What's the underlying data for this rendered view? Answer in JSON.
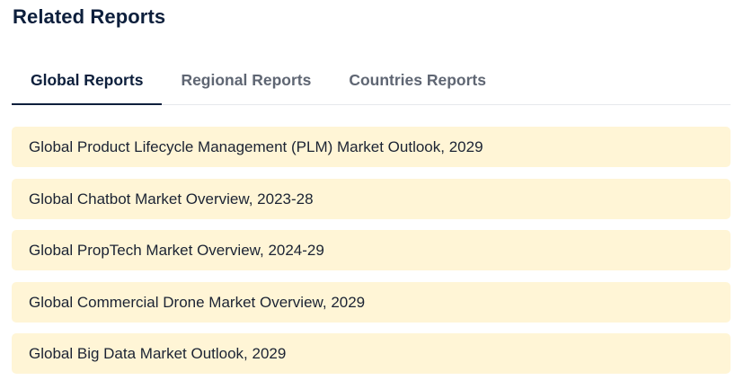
{
  "section": {
    "title": "Related Reports"
  },
  "tabs": [
    {
      "label": "Global Reports",
      "active": true
    },
    {
      "label": "Regional Reports",
      "active": false
    },
    {
      "label": "Countries Reports",
      "active": false
    }
  ],
  "reports": [
    {
      "title": "Global Product Lifecycle Management (PLM) Market Outlook, 2029"
    },
    {
      "title": "Global Chatbot Market Overview, 2023-28"
    },
    {
      "title": "Global PropTech Market Overview, 2024-29"
    },
    {
      "title": "Global Commercial Drone Market Overview, 2029"
    },
    {
      "title": "Global Big Data Market Outlook, 2029"
    }
  ],
  "colors": {
    "title": "#0d1f3c",
    "tab_inactive": "#5f6673",
    "item_background": "#fff5d6"
  }
}
